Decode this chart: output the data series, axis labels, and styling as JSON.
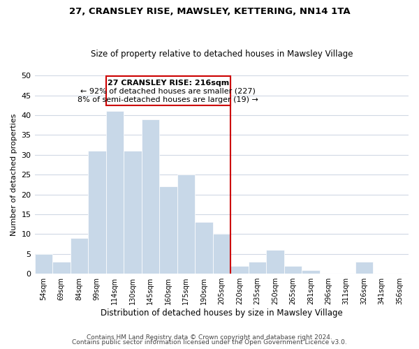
{
  "title": "27, CRANSLEY RISE, MAWSLEY, KETTERING, NN14 1TA",
  "subtitle": "Size of property relative to detached houses in Mawsley Village",
  "xlabel": "Distribution of detached houses by size in Mawsley Village",
  "ylabel": "Number of detached properties",
  "footer1": "Contains HM Land Registry data © Crown copyright and database right 2024.",
  "footer2": "Contains public sector information licensed under the Open Government Licence v3.0.",
  "bin_labels": [
    "54sqm",
    "69sqm",
    "84sqm",
    "99sqm",
    "114sqm",
    "130sqm",
    "145sqm",
    "160sqm",
    "175sqm",
    "190sqm",
    "205sqm",
    "220sqm",
    "235sqm",
    "250sqm",
    "265sqm",
    "281sqm",
    "296sqm",
    "311sqm",
    "326sqm",
    "341sqm",
    "356sqm"
  ],
  "bar_heights": [
    5,
    3,
    9,
    31,
    41,
    31,
    39,
    22,
    25,
    13,
    10,
    2,
    3,
    6,
    2,
    1,
    0,
    0,
    3,
    0,
    0
  ],
  "bar_color": "#c8d8e8",
  "bar_edge_color": "#ffffff",
  "grid_color": "#d0d8e4",
  "vline_x_index": 11,
  "vline_color": "#cc0000",
  "annotation_title": "27 CRANSLEY RISE: 216sqm",
  "annotation_line1": "← 92% of detached houses are smaller (227)",
  "annotation_line2": "8% of semi-detached houses are larger (19) →",
  "annotation_box_color": "#ffffff",
  "annotation_box_edge": "#cc0000",
  "ylim": [
    0,
    50
  ],
  "yticks": [
    0,
    5,
    10,
    15,
    20,
    25,
    30,
    35,
    40,
    45,
    50
  ]
}
